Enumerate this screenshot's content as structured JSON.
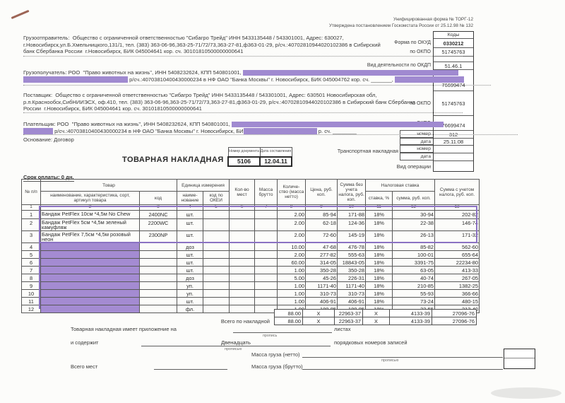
{
  "form": {
    "note1": "Унифицированная форма № ТОРГ-12",
    "note2": "Утверждена постановлением Госкомстата России от 25.12.98 № 132",
    "codes_header": "Коды",
    "okud_label": "Форма по ОКУД",
    "okud": "0330212",
    "okpo_label": "по ОКПО",
    "okpo_consignor": "51745763",
    "okdp_label": "Вид деятельности по ОКДП",
    "okdp": "51.46.1",
    "okpo_consignee": "76699474",
    "okpo_supplier": "51745763",
    "okpo_payer": "76699474",
    "number_label": "номер",
    "date_label": "дата",
    "waybill_number": "312",
    "waybill_date": "25.11.08",
    "transport_label": "Транспортная накладная",
    "operation_label": "Вид операции"
  },
  "parties": {
    "consignor_l1": "Грузоотправитель:  Общество с ограниченной ответственностью \"Сибагро Трейд\" ИНН 5433135448 / 543301001, Адрес: 630027,",
    "consignor_l2": "г.Новосибирск,ул.Б.Хмельницкого,131/1, тел. (383) 363-06-96,363-25-71/72/73,363-27-81,ф363-01-29, р/сч.:40702810944020102386 в Сибирский",
    "consignor_l3": "банк Сбербанка России  г.Новосибирск, БИК 045004641 кор. сч. 30101810500000000641",
    "consignee_l1": "Грузополучатель: РОО  \"Право животных на жизнь\", ИНН 5408232624, КПП 540801001,",
    "consignee_l2": "р/сч.:40703810400430000234 в НФ ОАО \"Банка Москвы\" г. Новосибирск, БИК 045004762 кор. сч. _______,",
    "supplier_l1": "Поставщик:  Общество с ограниченной ответственностью \"Сибагро Трейд\" ИНН 5433135448 / 543301001, Адрес: 630501 Новосибирская обл,",
    "supplier_l2": "р.п.Краснообск,СибНИИЭСХ, оф.410, тел. (383) 363-06-96,363-25-71/72/73,363-27-81,ф363-01-29, р/сч.:40702810944020102386 в Сибирский банк Сбербанка",
    "supplier_l3": "России  г.Новосибирск, БИК 045004641 кор. сч. 30101810500000000641",
    "payer_l1": "Плательщик: РОО  \"Право животных на жизнь\", ИНН 5408232624, КПП 540801001,",
    "payer_l2a": "р/сч.:40703810400430000234 в НФ ОАО \"Банка Москвы\" г. Новосибирск, БИ",
    "payer_l2b": "р. сч. ________",
    "basis": "Основание: Договор"
  },
  "doc": {
    "title": "ТОВАРНАЯ НАКЛАДНАЯ",
    "num_header": "Номер документа",
    "date_header": "Дата составления",
    "number": "5106",
    "date": "12.04.11",
    "payment_terms": "Срок оплаты: 0 дн."
  },
  "table": {
    "headers": {
      "num": "№ п/п",
      "goods": "Товар",
      "name": "наименование, характеристика, сорт, артикул товара",
      "code": "код",
      "unit_group": "Единица измерения",
      "unit_name": "наиме-нование",
      "unit_okei": "код по ОКЕИ",
      "places": "Кол-во мест",
      "gross": "Масса брутто",
      "qty": "Количе-ство (масса нетто)",
      "price": "Цена, руб. коп.",
      "amount": "Сумма без учета налога, руб. коп.",
      "tax_group": "Налоговая ставка",
      "tax_rate": "ставка, %",
      "tax_sum": "сумма, руб. коп.",
      "total": "Сумма с учетом налога, руб. коп."
    },
    "col_numbers": [
      "1",
      "2",
      "3",
      "4",
      "5",
      "6",
      "7",
      "8",
      "9",
      "10",
      "11",
      "12",
      "13"
    ],
    "items": [
      {
        "n": "1",
        "name": "Бандаж PetFlex 10см *4,5м No Chew",
        "code": "2400NC",
        "unit": "шт.",
        "qty": "2.00",
        "price": "85-94",
        "amount": "171-88",
        "rate": "18%",
        "tax": "30-94",
        "total": "202-82",
        "redacted": false
      },
      {
        "n": "2",
        "name": "Бандаж PetFlex 5см *4,5м зеленый камуфляж",
        "code": "2200WC",
        "unit": "шт.",
        "qty": "2.00",
        "price": "62-18",
        "amount": "124-36",
        "rate": "18%",
        "tax": "22-38",
        "total": "146-74",
        "redacted": false
      },
      {
        "n": "3",
        "name": "Бандаж PetFlex 7,5см *4,5м розовый неон",
        "code": "2300NP",
        "unit": "шт.",
        "qty": "2.00",
        "price": "72-60",
        "amount": "145-19",
        "rate": "18%",
        "tax": "26-13",
        "total": "171-32",
        "redacted": false
      },
      {
        "n": "4",
        "name": "",
        "code": "",
        "unit": "доз",
        "qty": "10.00",
        "price": "47-68",
        "amount": "476-78",
        "rate": "18%",
        "tax": "85-82",
        "total": "562-60",
        "redacted": true
      },
      {
        "n": "5",
        "name": "",
        "code": "",
        "unit": "шт.",
        "qty": "2.00",
        "price": "277-82",
        "amount": "555-63",
        "rate": "18%",
        "tax": "100-01",
        "total": "655-64",
        "redacted": true
      },
      {
        "n": "6",
        "name": "",
        "code": "",
        "unit": "шт.",
        "qty": "60.00",
        "price": "314-05",
        "amount": "18843-05",
        "rate": "18%",
        "tax": "3391-75",
        "total": "22234-80",
        "redacted": true
      },
      {
        "n": "7",
        "name": "",
        "code": "",
        "unit": "шт.",
        "qty": "1.00",
        "price": "350-28",
        "amount": "350-28",
        "rate": "18%",
        "tax": "63-05",
        "total": "413-33",
        "redacted": true
      },
      {
        "n": "8",
        "name": "",
        "code": "",
        "unit": "доз",
        "qty": "5.00",
        "price": "45-26",
        "amount": "226-31",
        "rate": "18%",
        "tax": "40-74",
        "total": "267-05",
        "redacted": true
      },
      {
        "n": "9",
        "name": "",
        "code": "",
        "unit": "уп.",
        "qty": "1.00",
        "price": "1171-40",
        "amount": "1171-40",
        "rate": "18%",
        "tax": "210-85",
        "total": "1382-25",
        "redacted": true
      },
      {
        "n": "10",
        "name": "",
        "code": "",
        "unit": "уп.",
        "qty": "1.00",
        "price": "310-73",
        "amount": "310-73",
        "rate": "18%",
        "tax": "55-93",
        "total": "366-66",
        "redacted": true
      },
      {
        "n": "11",
        "name": "",
        "code": "",
        "unit": "шт.",
        "qty": "1.00",
        "price": "406-91",
        "amount": "406-91",
        "rate": "18%",
        "tax": "73-24",
        "total": "480-15",
        "redacted": true
      },
      {
        "n": "12",
        "name": "",
        "code": "",
        "unit": "фл.",
        "qty": "1.00",
        "price": "180-85",
        "amount": "180-85",
        "rate": "18%",
        "tax": "32-55",
        "total": "213-40",
        "redacted": true
      }
    ],
    "totals_rows": [
      [
        "88.00",
        "X",
        "22963-37",
        "X",
        "4133-39",
        "27096-76"
      ],
      [
        "88.00",
        "X",
        "22963-37",
        "X",
        "4133-39",
        "27096-76"
      ]
    ],
    "total_label": "Всего по накладной"
  },
  "footer": {
    "appendix_label": "Товарная накладная имеет приложение на",
    "sheets_label": "листах",
    "propis_short": "пропись",
    "contains_label": "и содержит",
    "contains_value": "Двенадцать",
    "records_label": "порядковых номеров записей",
    "propis_full": "прописью",
    "net_label": "Масса груза (нетто)",
    "gross_label": "Масса груза (брутто)",
    "places_label": "Всего мест"
  },
  "colors": {
    "redaction": "#a08ad0",
    "highlight_border": "#8b72c3"
  }
}
